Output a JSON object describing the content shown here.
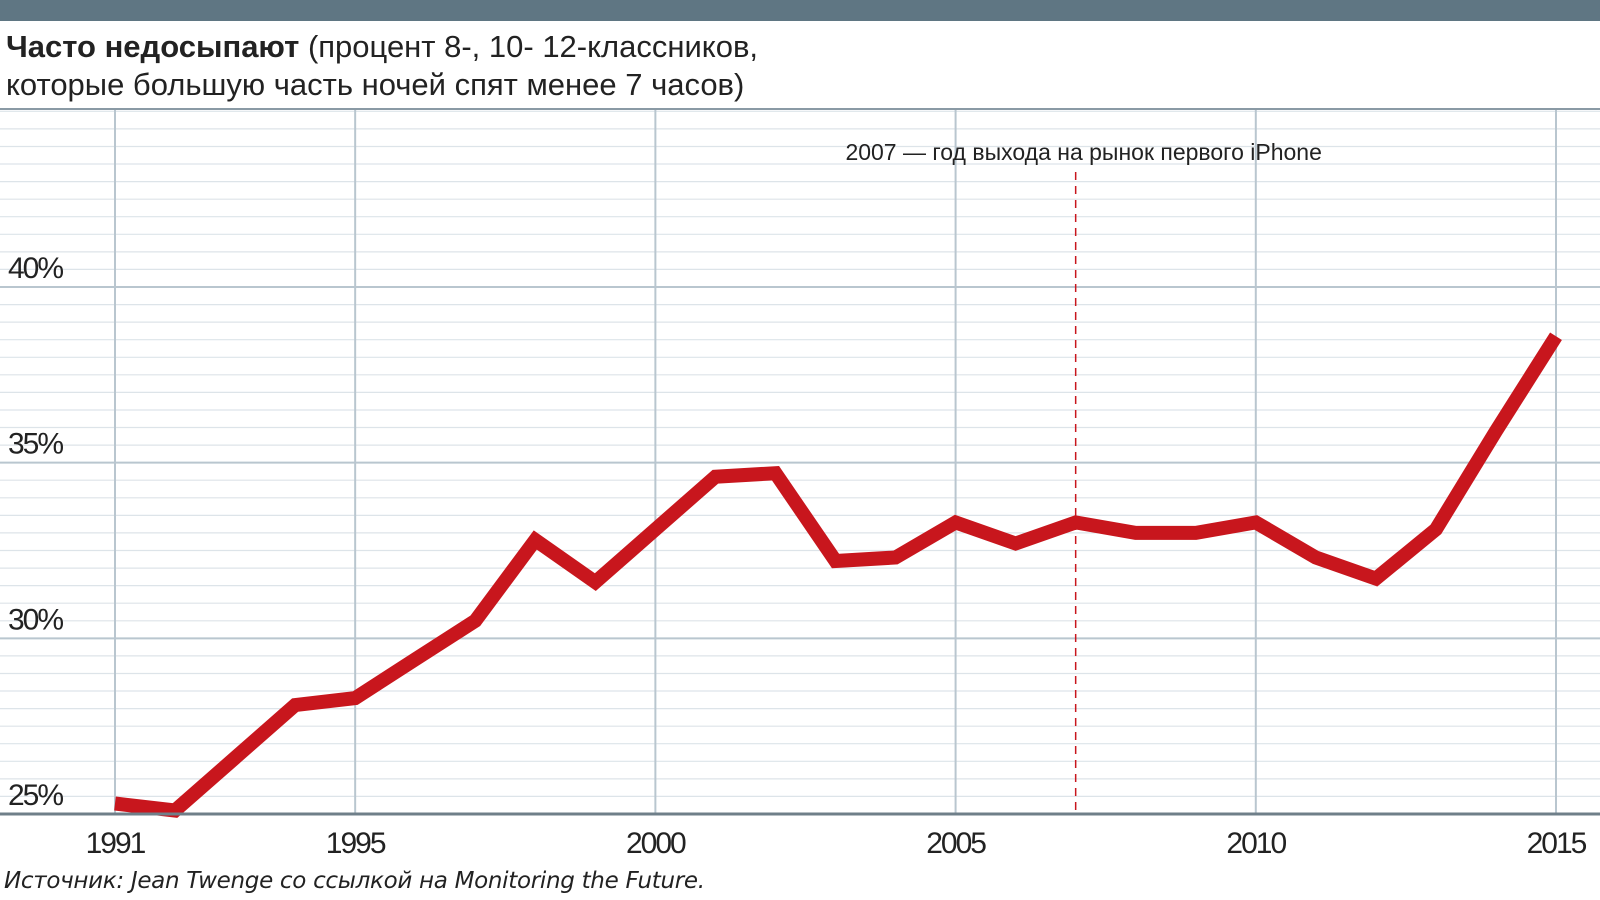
{
  "header": {
    "title_bold": "Часто недосыпают",
    "title_rest": " (процент 8-, 10- 12-классников,",
    "title_line2": "которые большую часть ночей спят менее 7 часов)"
  },
  "colors": {
    "top_bar": "#5f7683",
    "line": "#c8161d",
    "grid": "#b9c6cf",
    "annotation": "#c8161d"
  },
  "chart_data": {
    "type": "line",
    "title": "Часто недосыпают (процент 8-, 10- 12-классников, которые большую часть ночей спят менее 7 часов)",
    "xlabel": "",
    "ylabel": "",
    "xlim": [
      1991,
      2015
    ],
    "ylim": [
      25,
      40
    ],
    "x_ticks": [
      1991,
      1995,
      2000,
      2005,
      2010,
      2015
    ],
    "x_tick_labels": [
      "1991",
      "1995",
      "2000",
      "2005",
      "2010",
      "2015"
    ],
    "y_ticks": [
      25,
      30,
      35,
      40
    ],
    "y_tick_labels": [
      "25%",
      "30%",
      "35%",
      "40%"
    ],
    "grid": true,
    "legend": "none",
    "series": [
      {
        "x": [
          1991,
          1992,
          1993,
          1994,
          1995,
          1996,
          1997,
          1998,
          1999,
          2000,
          2001,
          2002,
          2003,
          2004,
          2005,
          2006,
          2007,
          2008,
          2009,
          2010,
          2011,
          2012,
          2013,
          2014,
          2015
        ],
        "values": [
          25.3,
          25.1,
          26.6,
          28.1,
          28.3,
          29.4,
          30.5,
          32.8,
          31.6,
          33.1,
          34.6,
          34.7,
          32.2,
          32.3,
          33.3,
          32.7,
          33.3,
          33.0,
          33.0,
          33.3,
          32.3,
          31.7,
          33.1,
          35.9,
          38.6
        ]
      }
    ],
    "annotations": [
      {
        "x": 2007,
        "text": "2007 — год выхода на рынок первого iPhone"
      }
    ]
  },
  "footer": {
    "source": "Источник: Jean Twenge со ссылкой на Monitoring the Future."
  }
}
